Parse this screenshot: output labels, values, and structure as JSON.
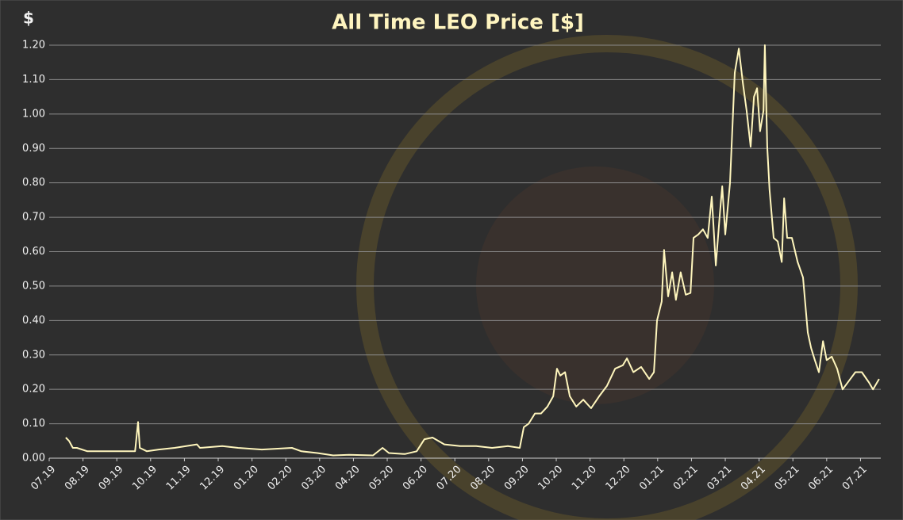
{
  "chart_data": {
    "type": "line",
    "title": "All Time LEO Price [$]",
    "y_label": "$",
    "color": "#fff6bd",
    "grid": true,
    "x": [
      0.49,
      0.59,
      0.7,
      0.82,
      1.13,
      1.6,
      2.07,
      2.54,
      2.63,
      2.68,
      2.89,
      3.24,
      3.71,
      4.37,
      4.46,
      5.12,
      5.59,
      6.29,
      7.18,
      7.46,
      7.93,
      8.4,
      8.87,
      9.58,
      9.86,
      10.05,
      10.52,
      10.87,
      11.1,
      11.34,
      11.69,
      12.16,
      12.63,
      13.1,
      13.57,
      13.92,
      14.04,
      14.18,
      14.37,
      14.55,
      14.74,
      14.91,
      15.02,
      15.12,
      15.26,
      15.4,
      15.59,
      15.8,
      16.03,
      16.27,
      16.5,
      16.74,
      16.97,
      17.09,
      17.28,
      17.51,
      17.75,
      17.89,
      17.98,
      18.12,
      18.19,
      18.31,
      18.43,
      18.54,
      18.68,
      18.83,
      18.97,
      19.06,
      19.2,
      19.34,
      19.48,
      19.6,
      19.72,
      19.84,
      19.91,
      20.0,
      20.14,
      20.28,
      20.4,
      20.52,
      20.63,
      20.75,
      20.85,
      20.94,
      21.03,
      21.13,
      21.17,
      21.24,
      21.31,
      21.43,
      21.55,
      21.67,
      21.74,
      21.83,
      21.97,
      22.14,
      22.3,
      22.44,
      22.54,
      22.65,
      22.77,
      22.89,
      23.0,
      23.15,
      23.31,
      23.47,
      23.66,
      23.85,
      24.04,
      24.25,
      24.37,
      24.55
    ],
    "values": [
      0.06,
      0.05,
      0.03,
      0.03,
      0.02,
      0.02,
      0.02,
      0.02,
      0.105,
      0.03,
      0.02,
      0.025,
      0.03,
      0.04,
      0.03,
      0.035,
      0.03,
      0.025,
      0.03,
      0.02,
      0.015,
      0.008,
      0.01,
      0.008,
      0.03,
      0.015,
      0.012,
      0.02,
      0.055,
      0.06,
      0.04,
      0.035,
      0.035,
      0.03,
      0.035,
      0.03,
      0.09,
      0.1,
      0.13,
      0.13,
      0.15,
      0.18,
      0.26,
      0.24,
      0.25,
      0.18,
      0.15,
      0.17,
      0.145,
      0.18,
      0.21,
      0.26,
      0.27,
      0.29,
      0.25,
      0.265,
      0.23,
      0.25,
      0.4,
      0.455,
      0.605,
      0.47,
      0.54,
      0.46,
      0.54,
      0.475,
      0.48,
      0.64,
      0.65,
      0.665,
      0.64,
      0.76,
      0.56,
      0.71,
      0.79,
      0.65,
      0.8,
      1.12,
      1.19,
      1.09,
      1.01,
      0.905,
      1.05,
      1.075,
      0.95,
      1.01,
      1.2,
      0.905,
      0.78,
      0.64,
      0.63,
      0.57,
      0.755,
      0.64,
      0.64,
      0.57,
      0.525,
      0.365,
      0.32,
      0.285,
      0.25,
      0.34,
      0.285,
      0.295,
      0.26,
      0.2,
      0.225,
      0.25,
      0.25,
      0.22,
      0.2,
      0.23
    ],
    "xlim": [
      0,
      24.6
    ],
    "xticks": [
      {
        "value": 0,
        "label": "07.19"
      },
      {
        "value": 1,
        "label": "08.19"
      },
      {
        "value": 2,
        "label": "09.19"
      },
      {
        "value": 3,
        "label": "10.19"
      },
      {
        "value": 4,
        "label": "11.19"
      },
      {
        "value": 5,
        "label": "12.19"
      },
      {
        "value": 6,
        "label": "01.20"
      },
      {
        "value": 7,
        "label": "02.20"
      },
      {
        "value": 8,
        "label": "03.20"
      },
      {
        "value": 9,
        "label": "04.20"
      },
      {
        "value": 10,
        "label": "05.20"
      },
      {
        "value": 11,
        "label": "06.20"
      },
      {
        "value": 12,
        "label": "07.20"
      },
      {
        "value": 13,
        "label": "08.20"
      },
      {
        "value": 14,
        "label": "09.20"
      },
      {
        "value": 15,
        "label": "10.20"
      },
      {
        "value": 16,
        "label": "11.20"
      },
      {
        "value": 17,
        "label": "12.20"
      },
      {
        "value": 18,
        "label": "01.21"
      },
      {
        "value": 19,
        "label": "02.21"
      },
      {
        "value": 20,
        "label": "03.21"
      },
      {
        "value": 21,
        "label": "04.21"
      },
      {
        "value": 22,
        "label": "05.21"
      },
      {
        "value": 23,
        "label": "06.21"
      },
      {
        "value": 24,
        "label": "07.21"
      }
    ],
    "ylim": [
      0,
      1.2
    ],
    "yticks": [
      {
        "value": 0,
        "label": "0.00"
      },
      {
        "value": 0.1,
        "label": "0.10"
      },
      {
        "value": 0.2,
        "label": "0.20"
      },
      {
        "value": 0.3,
        "label": "0.30"
      },
      {
        "value": 0.4,
        "label": "0.40"
      },
      {
        "value": 0.5,
        "label": "0.50"
      },
      {
        "value": 0.6,
        "label": "0.60"
      },
      {
        "value": 0.7,
        "label": "0.70"
      },
      {
        "value": 0.8,
        "label": "0.80"
      },
      {
        "value": 0.9,
        "label": "0.90"
      },
      {
        "value": 1.0,
        "label": "1.00"
      },
      {
        "value": 1.1,
        "label": "1.10"
      },
      {
        "value": 1.2,
        "label": "1.20"
      }
    ]
  }
}
